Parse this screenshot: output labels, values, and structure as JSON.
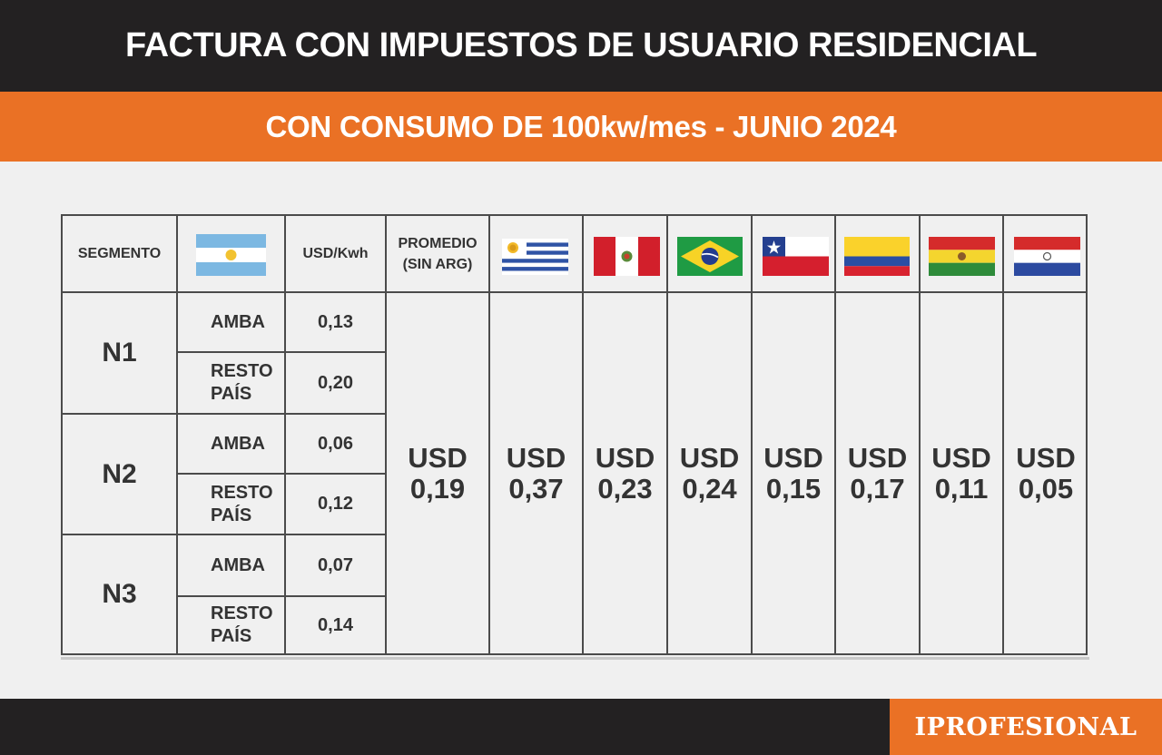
{
  "title": "FACTURA CON IMPUESTOS DE USUARIO RESIDENCIAL",
  "subtitle": "CON CONSUMO DE 100kw/mes - JUNIO 2024",
  "headers": {
    "segment": "SEGMENTO",
    "rate": "USD/Kwh",
    "average_line1": "PROMEDIO",
    "average_line2": "(SIN ARG)"
  },
  "flags": [
    "argentina-flag",
    "uruguay-flag",
    "peru-flag",
    "brazil-flag",
    "chile-flag",
    "colombia-flag",
    "bolivia-flag",
    "paraguay-flag"
  ],
  "segments": [
    {
      "name": "N1",
      "rows": [
        {
          "zone_line1": "AMBA",
          "zone_line2": "",
          "rate": "0,13"
        },
        {
          "zone_line1": "RESTO",
          "zone_line2": "PAÍS",
          "rate": "0,20"
        }
      ]
    },
    {
      "name": "N2",
      "rows": [
        {
          "zone_line1": "AMBA",
          "zone_line2": "",
          "rate": "0,06"
        },
        {
          "zone_line1": "RESTO",
          "zone_line2": "PAÍS",
          "rate": "0,12"
        }
      ]
    },
    {
      "name": "N3",
      "rows": [
        {
          "zone_line1": "AMBA",
          "zone_line2": "",
          "rate": "0,07"
        },
        {
          "zone_line1": "RESTO",
          "zone_line2": "PAÍS",
          "rate": "0,14"
        }
      ]
    }
  ],
  "prices": [
    {
      "column": "average",
      "currency": "USD",
      "value": "0,19"
    },
    {
      "column": "uruguay",
      "currency": "USD",
      "value": "0,37"
    },
    {
      "column": "peru",
      "currency": "USD",
      "value": "0,23"
    },
    {
      "column": "brazil",
      "currency": "USD",
      "value": "0,24"
    },
    {
      "column": "chile",
      "currency": "USD",
      "value": "0,15"
    },
    {
      "column": "colombia",
      "currency": "USD",
      "value": "0,17"
    },
    {
      "column": "bolivia",
      "currency": "USD",
      "value": "0,11"
    },
    {
      "column": "paraguay",
      "currency": "USD",
      "value": "0,05"
    }
  ],
  "brand": "IPROFESIONAL",
  "colors": {
    "dark": "#232122",
    "accent": "#ea7125",
    "background": "#f0f0f0",
    "text": "#333333",
    "grid": "#4b4b4b"
  }
}
